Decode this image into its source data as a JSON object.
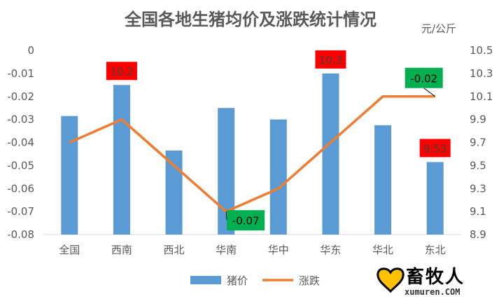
{
  "chart_data": {
    "type": "bar+line",
    "title": "全国各地生猪均价及涨跌统计情况",
    "right_axis_unit": "元/公斤",
    "categories": [
      "全国",
      "西南",
      "西北",
      "华南",
      "华中",
      "华东",
      "华北",
      "东北"
    ],
    "left_axis": {
      "ticks": [
        "0",
        "-0.01",
        "-0.02",
        "-0.03",
        "-0.04",
        "-0.05",
        "-0.06",
        "-0.07",
        "-0.08"
      ],
      "range": [
        -0.08,
        0
      ]
    },
    "right_axis": {
      "ticks": [
        "10.5",
        "10.3",
        "10.1",
        "9.9",
        "9.7",
        "9.5",
        "9.3",
        "9.1",
        "8.9"
      ],
      "range": [
        8.9,
        10.5
      ]
    },
    "series": [
      {
        "name": "猪价",
        "type": "bar",
        "axis": "right",
        "color": "#5B9BD5",
        "values": [
          9.93,
          10.2,
          9.63,
          10.0,
          9.9,
          10.3,
          9.85,
          9.53
        ]
      },
      {
        "name": "涨跌",
        "type": "line",
        "axis": "left",
        "color": "#ED7D31",
        "values": [
          -0.04,
          -0.03,
          -0.05,
          -0.07,
          -0.06,
          -0.04,
          -0.02,
          -0.02
        ]
      }
    ],
    "annotations": [
      {
        "text": "10.2",
        "category": "西南",
        "series": "猪价",
        "bg": "#FF0000",
        "color": "#404040"
      },
      {
        "text": "10.3",
        "category": "华东",
        "series": "猪价",
        "bg": "#FF0000",
        "color": "#404040"
      },
      {
        "text": "9.53",
        "category": "东北",
        "series": "猪价",
        "bg": "#FF0000",
        "color": "#404040"
      },
      {
        "text": "-0.07",
        "category": "华南",
        "series": "涨跌",
        "bg": "#00B050",
        "color": "#000000"
      },
      {
        "text": "-0.02",
        "category": "东北",
        "series": "涨跌",
        "bg": "#00B050",
        "color": "#000000"
      }
    ],
    "grid": false,
    "legend": "bottom"
  },
  "watermark": {
    "name": "畜牧人",
    "site": "xumuren.COM"
  }
}
